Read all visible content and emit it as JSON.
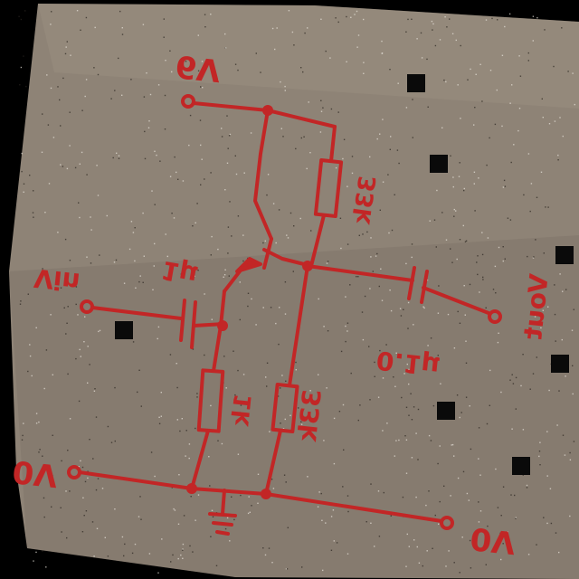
{
  "colors": {
    "background": "#000000",
    "paper": "#8e8376",
    "ink": "#c22626",
    "noise_marker": "#0a0a0a"
  },
  "labels": {
    "supply": "6V",
    "r_top": "33k",
    "r_mid": "33k",
    "r_bottom": "1k",
    "cap_in": "1μ",
    "cap_out": "0.1μ",
    "v_in": "Vin",
    "v_out": "Vout",
    "left_ground": "0V",
    "right_ground": "0V"
  }
}
